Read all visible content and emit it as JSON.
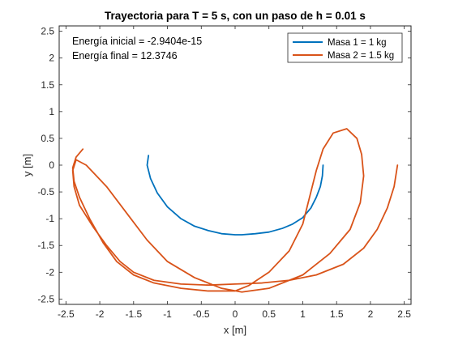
{
  "chart_data": {
    "type": "line",
    "title": "Trayectoria para T = 5 s, con un paso de h = 0.01 s",
    "xlabel": "x [m]",
    "ylabel": "y [m]",
    "xlim": [
      -2.6,
      2.6
    ],
    "ylim": [
      -2.6,
      2.6
    ],
    "xticks": [
      -2.5,
      -2,
      -1.5,
      -1,
      -0.5,
      0,
      0.5,
      1,
      1.5,
      2,
      2.5
    ],
    "xtick_labels": [
      "-2.5",
      "-2",
      "-1.5",
      "-1",
      "-0.5",
      "0",
      "0.5",
      "1",
      "1.5",
      "2",
      "2.5"
    ],
    "yticks": [
      -2.5,
      -2,
      -1.5,
      -1,
      -0.5,
      0,
      0.5,
      1,
      1.5,
      2,
      2.5
    ],
    "ytick_labels": [
      "-2.5",
      "-2",
      "-1.5",
      "-1",
      "-0.5",
      "0",
      "0.5",
      "1",
      "1.5",
      "2",
      "2.5"
    ],
    "grid": false,
    "legend_position": "top-right",
    "annotations": [
      "Energía inicial = -2.9404e-15",
      "Energía final = 12.3746"
    ],
    "series": [
      {
        "name": "Masa 1 = 1 kg",
        "color": "#0072BD",
        "x": [
          1.3,
          1.29,
          1.26,
          1.2,
          1.12,
          1.0,
          0.85,
          0.7,
          0.5,
          0.3,
          0.1,
          0.0,
          -0.2,
          -0.4,
          -0.6,
          -0.8,
          -1.0,
          -1.15,
          -1.25,
          -1.3,
          -1.28
        ],
        "y": [
          0.0,
          -0.2,
          -0.4,
          -0.6,
          -0.8,
          -0.98,
          -1.1,
          -1.18,
          -1.25,
          -1.28,
          -1.3,
          -1.3,
          -1.28,
          -1.22,
          -1.14,
          -1.0,
          -0.78,
          -0.52,
          -0.25,
          0.0,
          0.18
        ]
      },
      {
        "name": "Masa 2 = 1.5 kg",
        "color": "#D95319",
        "x": [
          2.4,
          2.35,
          2.25,
          2.1,
          1.9,
          1.6,
          1.2,
          0.8,
          0.4,
          0.0,
          -0.4,
          -0.8,
          -1.2,
          -1.5,
          -1.7,
          -1.9,
          -2.1,
          -2.3,
          -2.38,
          -2.4,
          -2.35,
          -2.2,
          -1.9,
          -1.6,
          -1.3,
          -1.0,
          -0.6,
          -0.2,
          0.1,
          0.5,
          1.0,
          1.4,
          1.7,
          1.85,
          1.9,
          1.87,
          1.8,
          1.65,
          1.45,
          1.3,
          1.2,
          1.1,
          1.0,
          0.8,
          0.5,
          0.2,
          0.0,
          -0.4,
          -0.8,
          -1.2,
          -1.5,
          -1.75,
          -1.95,
          -2.15,
          -2.3,
          -2.38,
          -2.4,
          -2.35,
          -2.25
        ],
        "y": [
          0.0,
          -0.4,
          -0.8,
          -1.2,
          -1.55,
          -1.85,
          -2.05,
          -2.15,
          -2.2,
          -2.22,
          -2.24,
          -2.22,
          -2.15,
          -2.0,
          -1.8,
          -1.5,
          -1.15,
          -0.75,
          -0.4,
          -0.1,
          0.1,
          0.0,
          -0.4,
          -0.9,
          -1.4,
          -1.8,
          -2.1,
          -2.3,
          -2.37,
          -2.3,
          -2.05,
          -1.65,
          -1.2,
          -0.7,
          -0.2,
          0.2,
          0.5,
          0.68,
          0.6,
          0.3,
          -0.1,
          -0.6,
          -1.1,
          -1.6,
          -2.0,
          -2.25,
          -2.35,
          -2.35,
          -2.3,
          -2.2,
          -2.05,
          -1.8,
          -1.45,
          -1.0,
          -0.6,
          -0.3,
          -0.05,
          0.15,
          0.3
        ]
      }
    ]
  }
}
